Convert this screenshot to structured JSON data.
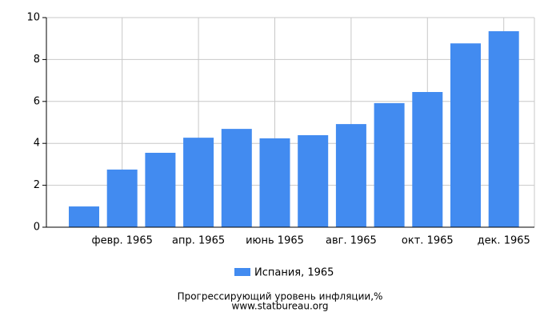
{
  "chart_data": {
    "type": "bar",
    "categories": [
      null,
      "февр. 1965",
      null,
      "апр. 1965",
      null,
      "июнь 1965",
      null,
      "авг. 1965",
      null,
      "окт. 1965",
      null,
      "дек. 1965"
    ],
    "series": [
      {
        "name": "Испания, 1965",
        "color": "#428bf0",
        "values": [
          0.99,
          2.75,
          3.55,
          4.27,
          4.69,
          4.24,
          4.39,
          4.92,
          5.92,
          6.45,
          8.77,
          9.35
        ]
      }
    ],
    "ylim": [
      0,
      10
    ],
    "yticks": [
      0,
      2,
      4,
      6,
      8,
      10
    ],
    "grid": true,
    "xlabel": "Прогрессирующий уровень инфляции,%",
    "source": "www.statbureau.org"
  }
}
